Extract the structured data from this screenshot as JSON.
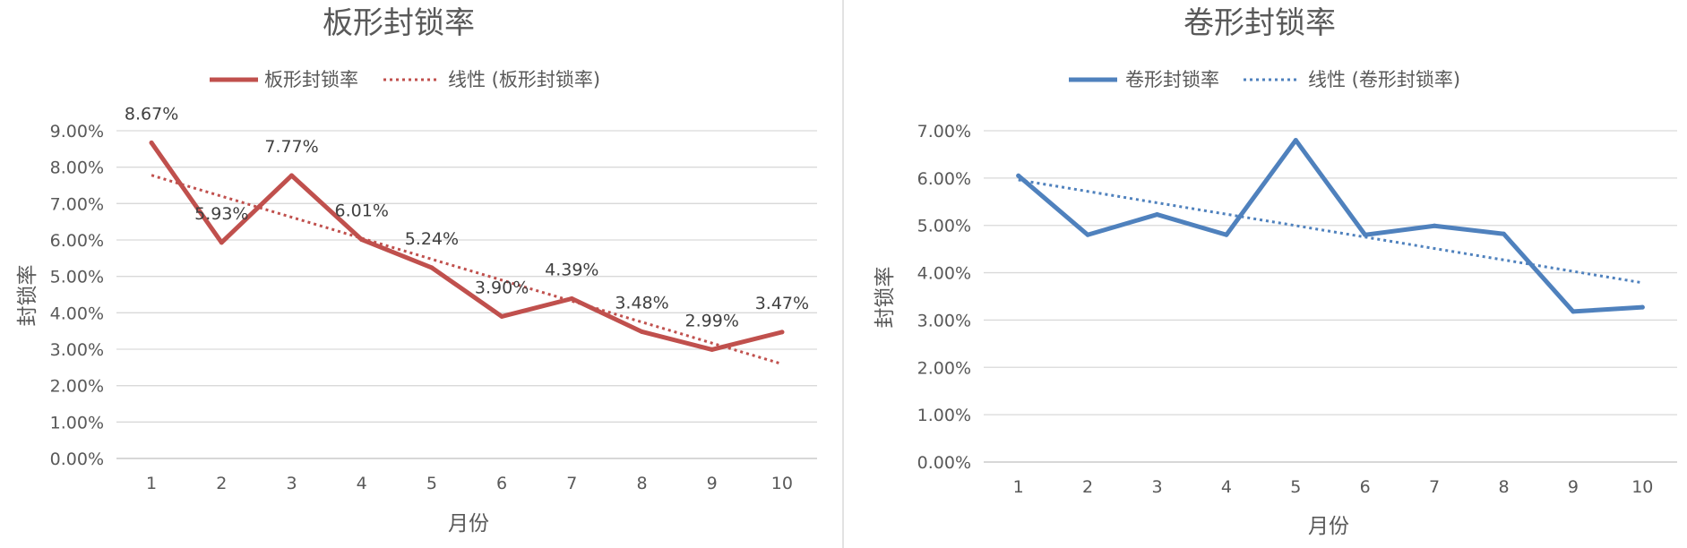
{
  "chart_data": [
    {
      "type": "line",
      "title": "板形封锁率",
      "xlabel": "月份",
      "ylabel": "封锁率",
      "categories": [
        "1",
        "2",
        "3",
        "4",
        "5",
        "6",
        "7",
        "8",
        "9",
        "10"
      ],
      "yticks": [
        "0.00%",
        "1.00%",
        "2.00%",
        "3.00%",
        "4.00%",
        "5.00%",
        "6.00%",
        "7.00%",
        "8.00%",
        "9.00%"
      ],
      "ylim": [
        0,
        9
      ],
      "grid": true,
      "legend_position": "top",
      "series": [
        {
          "name": "板形封锁率",
          "values": [
            8.67,
            5.93,
            7.77,
            6.01,
            5.24,
            3.9,
            4.39,
            3.48,
            2.99,
            3.47
          ],
          "labels": [
            "8.67%",
            "5.93%",
            "7.77%",
            "6.01%",
            "5.24%",
            "3.90%",
            "4.39%",
            "3.48%",
            "2.99%",
            "3.47%"
          ],
          "color": "#c0504d"
        }
      ],
      "trendline": {
        "name": "线性 (板形封锁率)",
        "type": "linear",
        "color": "#c0504d"
      }
    },
    {
      "type": "line",
      "title": "卷形封锁率",
      "xlabel": "月份",
      "ylabel": "封锁率",
      "categories": [
        "1",
        "2",
        "3",
        "4",
        "5",
        "6",
        "7",
        "8",
        "9",
        "10"
      ],
      "yticks": [
        "0.00%",
        "1.00%",
        "2.00%",
        "3.00%",
        "4.00%",
        "5.00%",
        "6.00%",
        "7.00%"
      ],
      "ylim": [
        0,
        7
      ],
      "grid": true,
      "legend_position": "top",
      "series": [
        {
          "name": "卷形封锁率",
          "values": [
            6.05,
            4.8,
            5.23,
            4.8,
            6.8,
            4.8,
            4.99,
            4.82,
            3.18,
            3.27
          ],
          "color": "#4f81bd"
        }
      ],
      "trendline": {
        "name": "线性 (卷形封锁率)",
        "type": "linear",
        "color": "#4f81bd"
      }
    }
  ]
}
